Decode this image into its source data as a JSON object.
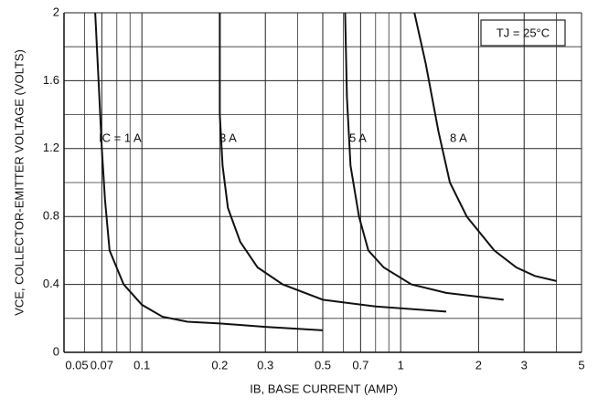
{
  "chart_data": {
    "type": "line",
    "title": "TJ = 25°C",
    "x_label": "IB, BASE CURRENT (AMP)",
    "y_label": "VCE, COLLECTOR-EMITTER VOLTAGE (VOLTS)",
    "x_scale": "log",
    "xlim": [
      0.05,
      5
    ],
    "xticks": [
      0.05,
      0.07,
      0.1,
      0.2,
      0.3,
      0.5,
      0.7,
      1,
      2,
      3,
      5
    ],
    "xminor": [
      0.06,
      0.08,
      0.09,
      0.4,
      0.6,
      0.8,
      0.9,
      4
    ],
    "ylim": [
      0,
      2
    ],
    "yticks": [
      0,
      0.4,
      0.8,
      1.2,
      1.6,
      2
    ],
    "yminor": [
      0.2,
      0.6,
      1.0,
      1.4,
      1.8
    ],
    "grid": true,
    "series": [
      {
        "name": "IC = 1 A",
        "color": "#111111",
        "x": [
          0.066,
          0.068,
          0.07,
          0.072,
          0.075,
          0.085,
          0.1,
          0.12,
          0.15,
          0.2,
          0.3,
          0.5
        ],
        "values": [
          2,
          1.6,
          1.2,
          0.9,
          0.6,
          0.4,
          0.28,
          0.21,
          0.18,
          0.17,
          0.15,
          0.13
        ]
      },
      {
        "name": "3 A",
        "color": "#111111",
        "x": [
          0.2,
          0.2,
          0.205,
          0.215,
          0.24,
          0.28,
          0.35,
          0.5,
          0.8,
          1.5
        ],
        "values": [
          2,
          1.4,
          1.1,
          0.85,
          0.65,
          0.5,
          0.4,
          0.31,
          0.27,
          0.24
        ]
      },
      {
        "name": "5 A",
        "color": "#111111",
        "x": [
          0.61,
          0.62,
          0.64,
          0.69,
          0.75,
          0.86,
          1.1,
          1.5,
          2.5
        ],
        "values": [
          2,
          1.5,
          1.1,
          0.8,
          0.6,
          0.5,
          0.4,
          0.35,
          0.31
        ]
      },
      {
        "name": "8 A",
        "color": "#111111",
        "x": [
          1.13,
          1.25,
          1.4,
          1.55,
          1.8,
          2.3,
          2.8,
          3.3,
          4
        ],
        "values": [
          2,
          1.7,
          1.3,
          1.0,
          0.8,
          0.6,
          0.5,
          0.45,
          0.42
        ]
      }
    ]
  }
}
